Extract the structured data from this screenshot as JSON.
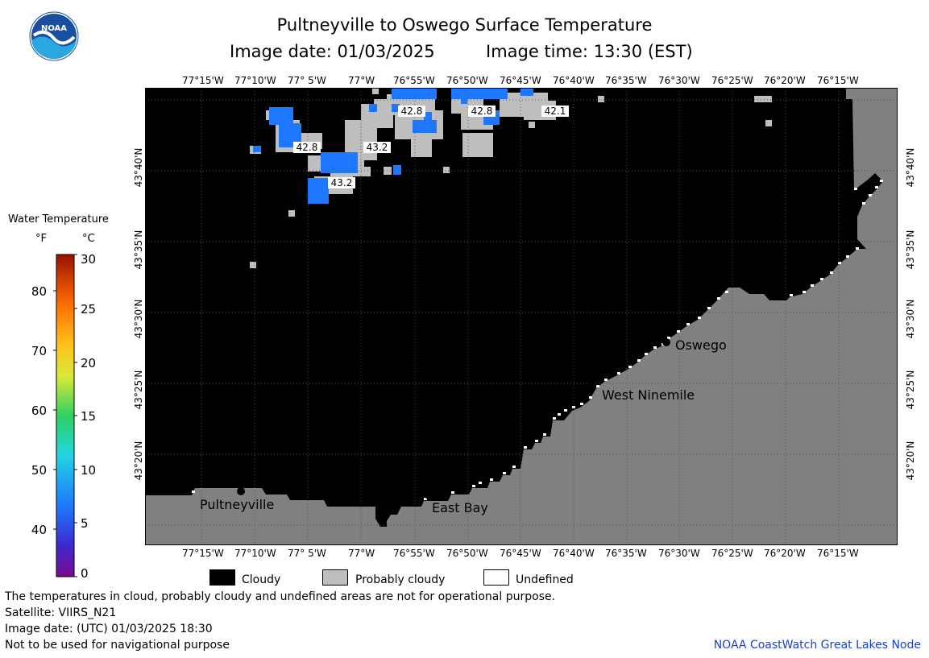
{
  "header": {
    "title": "Pultneyville to Oswego Surface Temperature",
    "image_date_line": "Image date: 01/03/2025",
    "image_time_line": "Image time: 13:30 (EST)",
    "logo_text": "NOAA"
  },
  "map": {
    "lon_labels": [
      "77°15'W",
      "77°10'W",
      "77° 5'W",
      "77°W",
      "76°55'W",
      "76°50'W",
      "76°45'W",
      "76°40'W",
      "76°35'W",
      "76°30'W",
      "76°25'W",
      "76°20'W",
      "76°15'W"
    ],
    "lat_labels": [
      "43°40'N",
      "43°35'N",
      "43°30'N",
      "43°25'N",
      "43°20'N"
    ],
    "colors": {
      "cloudy": "#000000",
      "land": "#808080",
      "probably_cloudy": "#bebebe",
      "water_cold": "#1e78ff",
      "undefined": "#ffffff"
    },
    "places": [
      {
        "name": "Pultneyville"
      },
      {
        "name": "East Bay"
      },
      {
        "name": "West Ninemile"
      },
      {
        "name": "Oswego"
      }
    ],
    "temp_labels": [
      {
        "value": "42.8"
      },
      {
        "value": "42.8"
      },
      {
        "value": "42.1"
      },
      {
        "value": "42.8"
      },
      {
        "value": "43.2"
      },
      {
        "value": "43.2"
      }
    ]
  },
  "colorbar": {
    "title": "Water Temperature",
    "unit_f": "°F",
    "unit_c": "°C",
    "f_ticks": [
      "80",
      "70",
      "60",
      "50",
      "40"
    ],
    "c_ticks": [
      "30",
      "25",
      "20",
      "15",
      "10",
      "5",
      "0"
    ],
    "range_c": [
      0,
      30
    ]
  },
  "legend": {
    "items": [
      {
        "label": "Cloudy",
        "color": "#000000"
      },
      {
        "label": "Probably cloudy",
        "color": "#bebebe"
      },
      {
        "label": "Undefined",
        "color": "#ffffff"
      }
    ]
  },
  "footer": {
    "disclaimer": "The temperatures in cloud, probably cloudy and undefined areas are not for operational purpose.",
    "satellite": "Satellite: VIIRS_N21",
    "utc_date": "Image date: (UTC) 01/03/2025  18:30",
    "nav_warning": "Not to be used for navigational purpose",
    "credit": "NOAA CoastWatch Great Lakes Node"
  }
}
